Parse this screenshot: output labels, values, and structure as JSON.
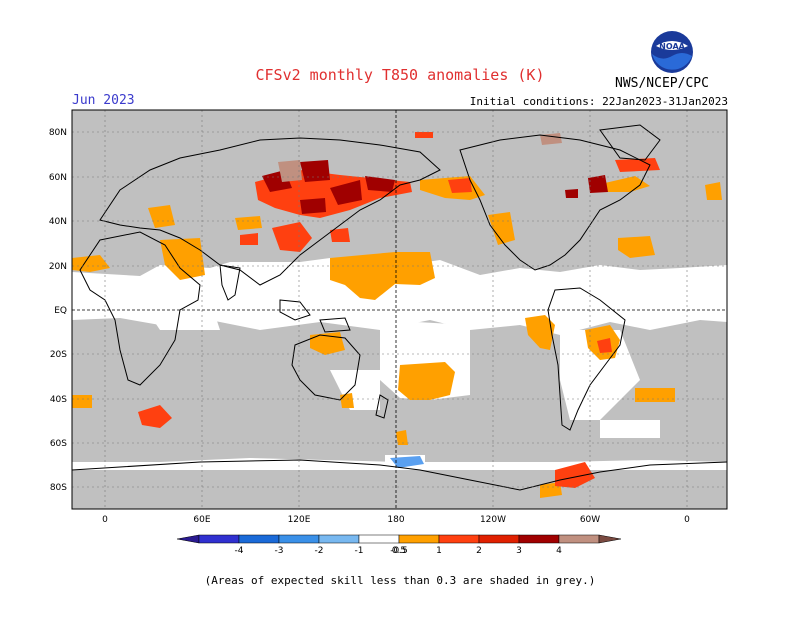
{
  "header": {
    "title": "CFSv2 monthly T850 anomalies (K)",
    "month": "Jun 2023",
    "initial_conditions": "Initial conditions: 22Jan2023-31Jan2023",
    "agency": "NWS/NCEP/CPC",
    "logo_text": "NOAA"
  },
  "map": {
    "lat_labels": [
      "80N",
      "60N",
      "40N",
      "20N",
      "EQ",
      "20S",
      "40S",
      "60S",
      "80S"
    ],
    "lon_labels": [
      "0",
      "60E",
      "120E",
      "180",
      "120W",
      "60W",
      "0"
    ],
    "colors": {
      "skill_grey": "#c0c0c0",
      "land_outline": "#000000",
      "pos_0_5_1": "#ffa000",
      "pos_1_2": "#ff4010",
      "pos_2_3": "#a00000",
      "pos_3_4": "#c09080",
      "neg_0_5_1": "#5aa0f0"
    }
  },
  "colorbar": {
    "labels": [
      "-4",
      "-3",
      "-2",
      "-1",
      "-0.5",
      "0.5",
      "1",
      "2",
      "3",
      "4"
    ],
    "colors": [
      "#2a1a90",
      "#3030d0",
      "#1a6ad8",
      "#3a90e8",
      "#78b8f0",
      "#ffffff",
      "#ffa000",
      "#ff4010",
      "#e02000",
      "#a00000",
      "#c09080",
      "#7a4a40"
    ]
  },
  "footnote": "(Areas of expected skill less than 0.3 are shaded in grey.)"
}
